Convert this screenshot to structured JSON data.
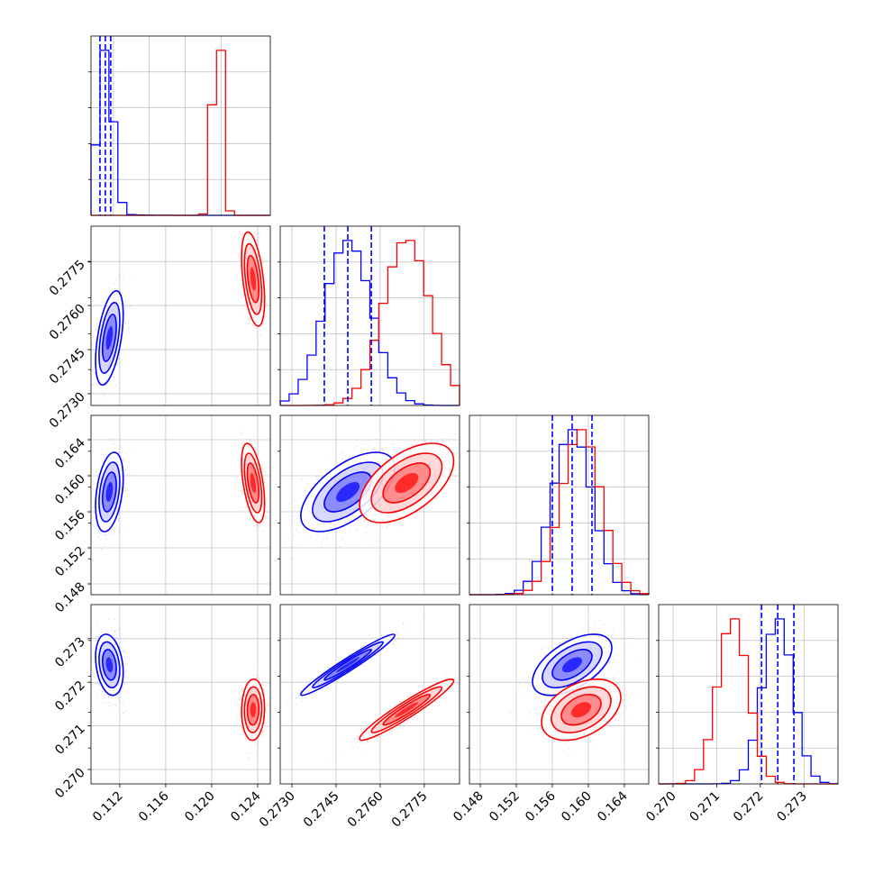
{
  "chart_data": {
    "type": "corner",
    "grid": true,
    "series": [
      {
        "color": "#0000ff",
        "mean": [
          0.1111,
          0.2749,
          0.1582,
          0.2724
        ],
        "sd": [
          0.0006,
          0.0008,
          0.0022,
          0.00035
        ],
        "corr": {
          "1-0": 0.5,
          "2-0": 0.35,
          "2-1": 0.6,
          "3-0": -0.25,
          "3-1": 0.97,
          "3-2": 0.55
        }
      },
      {
        "color": "#ff0000",
        "mean": [
          0.1236,
          0.2769,
          0.1592,
          0.27137
        ],
        "sd": [
          0.0005,
          0.0008,
          0.0022,
          0.00035
        ],
        "corr": {
          "1-0": -0.45,
          "2-0": -0.5,
          "2-1": 0.55,
          "3-0": 0.05,
          "3-1": 0.95,
          "3-2": 0.4
        }
      }
    ],
    "quantile_lines": {
      "color": "#0000ff",
      "values": [
        [
          0.1105,
          0.1111,
          0.1117
        ],
        [
          0.2741,
          0.2749,
          0.2757
        ],
        [
          0.156,
          0.1582,
          0.1604
        ],
        [
          0.27203,
          0.2724,
          0.27277
        ]
      ]
    },
    "params": [
      {
        "xlim": [
          0.1095,
          0.1295
        ],
        "ylim": null,
        "xticks": [],
        "xtick_labels": []
      },
      {
        "xlim": [
          0.2726,
          0.2787
        ],
        "ylim": [
          0.2726,
          0.2787
        ],
        "xticks": [
          0.273,
          0.2745,
          0.276,
          0.2775
        ],
        "xtick_labels": [
          "0.2730",
          "0.2745",
          "0.2760",
          "0.2775"
        ],
        "yticks": [
          0.273,
          0.2745,
          0.276,
          0.2775
        ],
        "ytick_labels": [
          "0.2730",
          "0.2745",
          "0.2760",
          "0.2775"
        ]
      },
      {
        "xlim": [
          0.1468,
          0.1667
        ],
        "ylim": [
          0.1468,
          0.1667
        ],
        "xticks": [
          0.148,
          0.152,
          0.156,
          0.16,
          0.164
        ],
        "xtick_labels": [
          "0.148",
          "0.152",
          "0.156",
          "0.160",
          "0.164"
        ],
        "yticks": [
          0.148,
          0.152,
          0.156,
          0.16,
          0.164
        ],
        "ytick_labels": [
          "0.148",
          "0.152",
          "0.156",
          "0.160",
          "0.164"
        ]
      },
      {
        "xlim": [
          0.26967,
          0.27378
        ],
        "ylim": [
          0.26967,
          0.27378
        ],
        "xticks": [
          0.27,
          0.271,
          0.272,
          0.273
        ],
        "xtick_labels": [
          "0.270",
          "0.271",
          "0.272",
          "0.273"
        ],
        "yticks": [
          0.27,
          0.271,
          0.272,
          0.273
        ],
        "ytick_labels": [
          "0.270",
          "0.271",
          "0.272",
          "0.273"
        ]
      }
    ],
    "param0_axis": {
      "xticks": [
        0.112,
        0.116,
        0.12,
        0.124
      ],
      "xtick_labels": [
        "0.112",
        "0.116",
        "0.120",
        "0.124"
      ],
      "xlim": [
        0.1095,
        0.1251
      ]
    }
  }
}
